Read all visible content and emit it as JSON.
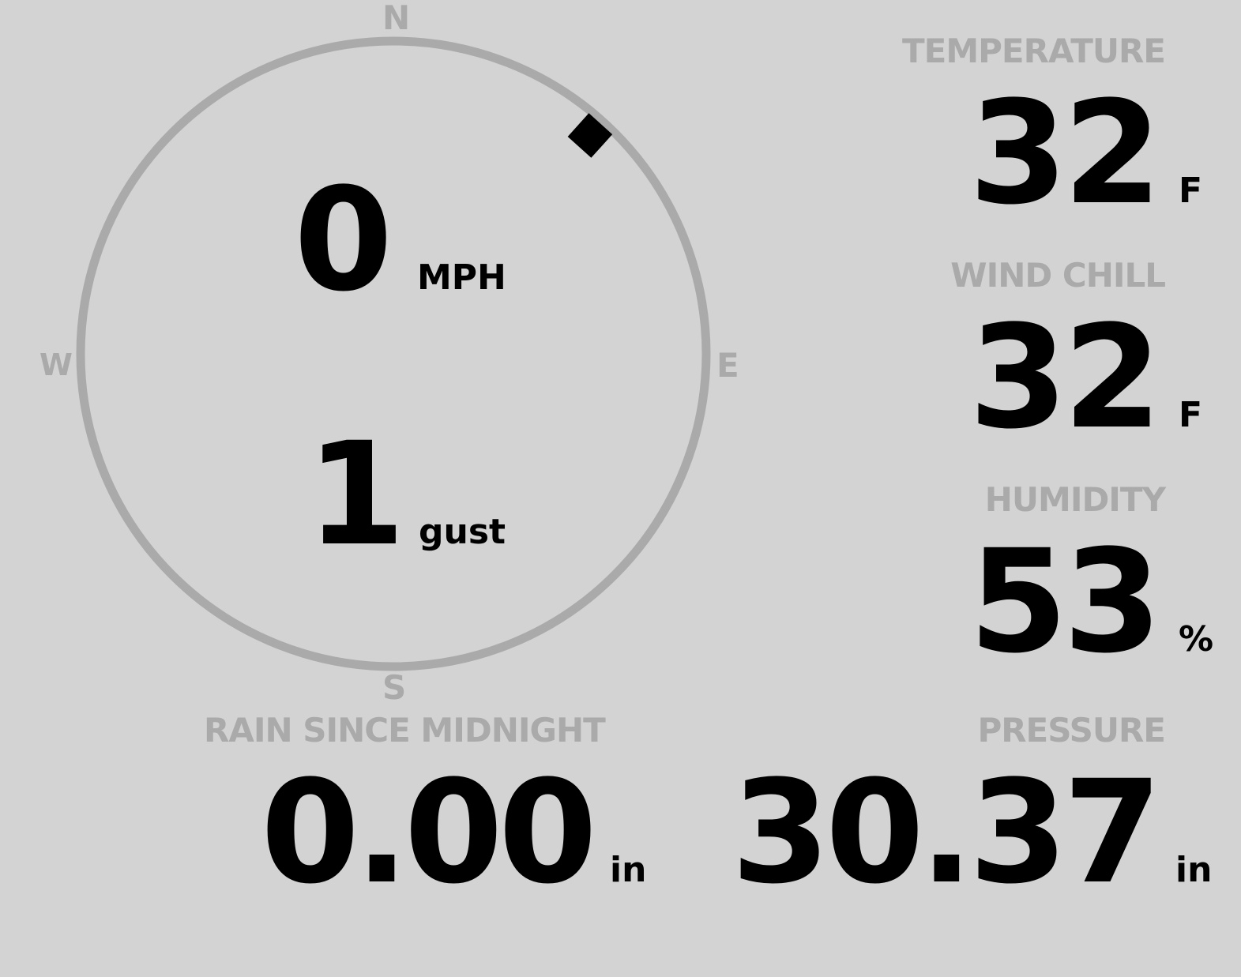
{
  "colors": {
    "background": "#d3d3d3",
    "label": "#aaaaaa",
    "value": "#000000",
    "compass_ring": "#aaaaaa",
    "wind_marker": "#000000"
  },
  "compass": {
    "north": "N",
    "south": "S",
    "east": "E",
    "west": "W",
    "wind_direction_deg": 42
  },
  "wind": {
    "speed": "0",
    "speed_unit": "MPH",
    "gust": "1",
    "gust_unit": "gust"
  },
  "temperature": {
    "label": "TEMPERATURE",
    "value": "32",
    "unit": "F"
  },
  "wind_chill": {
    "label": "WIND CHILL",
    "value": "32",
    "unit": "F"
  },
  "humidity": {
    "label": "HUMIDITY",
    "value": "53",
    "unit": "%"
  },
  "rain": {
    "label": "RAIN SINCE MIDNIGHT",
    "value": "0.00",
    "unit": "in"
  },
  "pressure": {
    "label": "PRESSURE",
    "value": "30.37",
    "unit": "in"
  }
}
